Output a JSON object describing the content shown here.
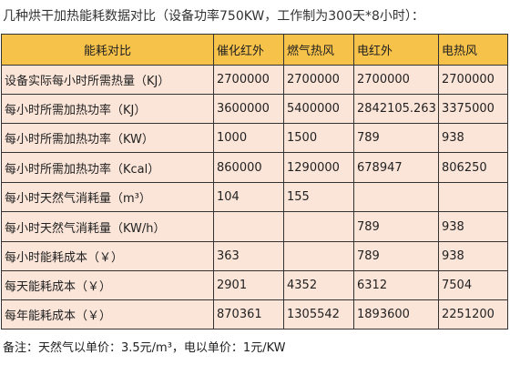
{
  "title": "几种烘干加热能耗数据对比（设备功率750KW，工作制为300天*8小时）：",
  "table": {
    "headers": [
      "能耗对比",
      "催化红外",
      "燃气热风",
      "电红外",
      "电热风"
    ],
    "rows": [
      [
        "设备实际每小时所需热量（KJ）",
        "2700000",
        "2700000",
        "2700000",
        "2700000"
      ],
      [
        "每小时所需加热功率（KJ）",
        "3600000",
        "5400000",
        "2842105.263",
        "3375000"
      ],
      [
        "每小时所需加热功率（KW）",
        "1000",
        "1500",
        "789",
        "938"
      ],
      [
        "每小时所需加热功率（Kcal）",
        "860000",
        "1290000",
        "678947",
        "806250"
      ],
      [
        "每小时天然气消耗量（m³）",
        "104",
        "155",
        "",
        ""
      ],
      [
        "每小时天然气消耗量（KW/h）",
        "",
        "",
        "789",
        "938"
      ],
      [
        "每小时能耗成本（￥）",
        "363",
        "",
        "789",
        "938"
      ],
      [
        "每天能耗成本（￥）",
        "2901",
        "4352",
        "6312",
        "7504"
      ],
      [
        "每年能耗成本（￥）",
        "870361",
        "1305542",
        "1893600",
        "2251200"
      ]
    ]
  },
  "note": "备注：天然气以单价：3.5元/m³，电以单价：1元/KW",
  "colors": {
    "header_bg": "#f7c24a",
    "cell_bg": "#fbe5d9",
    "border": "#333333"
  }
}
